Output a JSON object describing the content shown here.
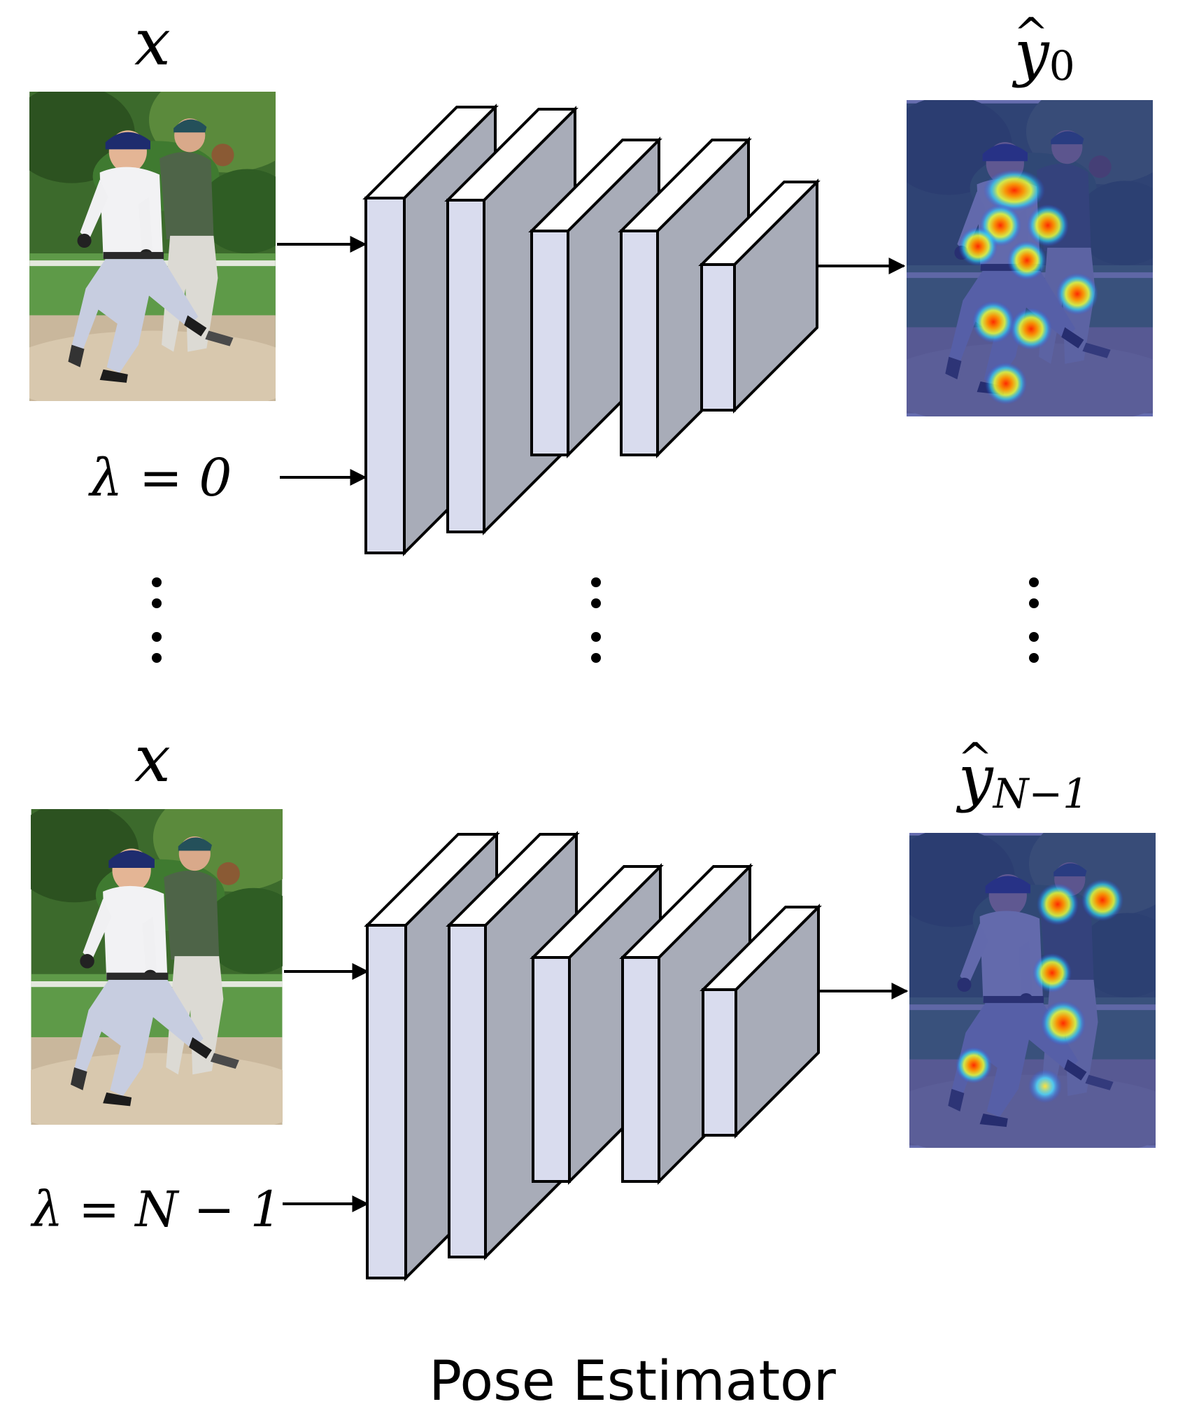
{
  "rows": [
    {
      "input_symbol": "x",
      "lambda_label": "λ = 0",
      "output_base": "y",
      "output_hat": "^",
      "output_subscript": "0"
    },
    {
      "input_symbol": "x",
      "lambda_label": "λ = N − 1",
      "output_base": "y",
      "output_hat": "^",
      "output_subscript": "N−1"
    }
  ],
  "caption": "Pose Estimator",
  "colors": {
    "layer_front": "#d9dcee",
    "layer_side": "#a8acb8",
    "heatmap_overlay": "#2b3590"
  }
}
